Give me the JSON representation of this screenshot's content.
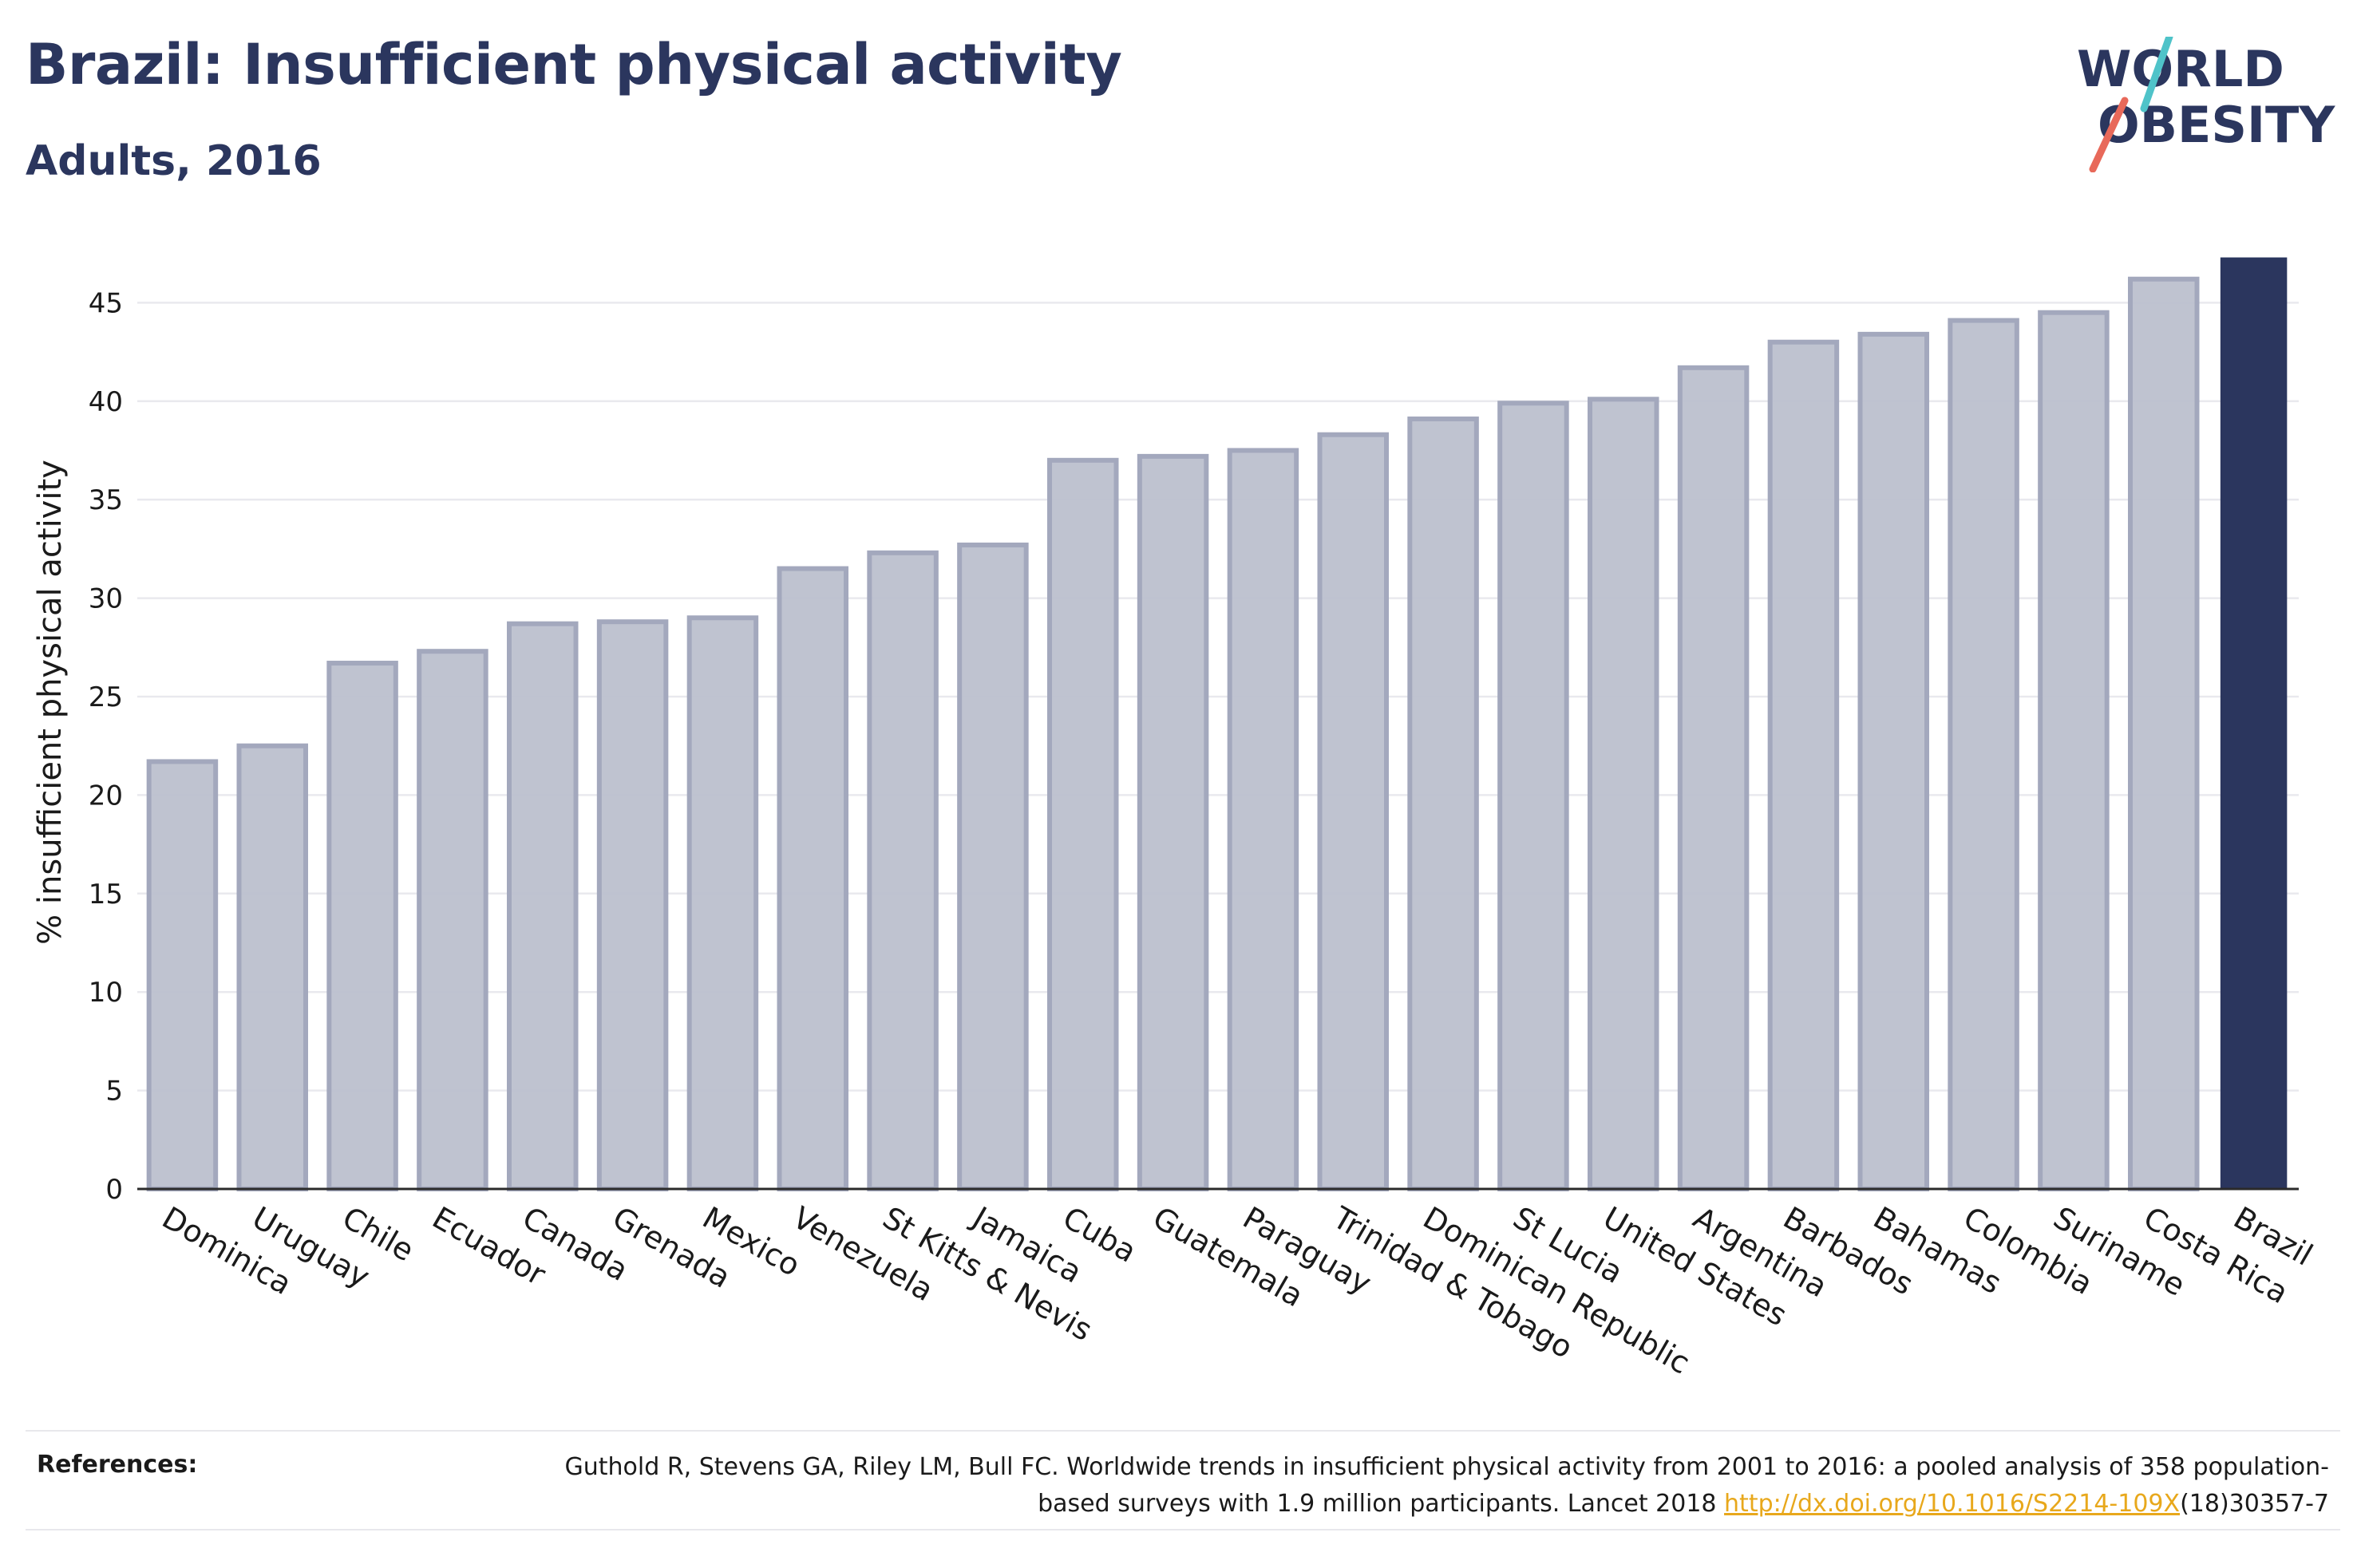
{
  "header": {
    "title": "Brazil: Insufficient physical activity",
    "subtitle": "Adults, 2016"
  },
  "logo": {
    "line1": "WORLD",
    "line2": "OBESITY",
    "accent_colors": [
      "#4fc3c9",
      "#e8695a"
    ]
  },
  "chart_data": {
    "type": "bar",
    "ylabel": "% insufficient physical activity",
    "xlabel": "",
    "ylim": [
      0,
      47
    ],
    "yticks": [
      0,
      5,
      10,
      15,
      20,
      25,
      30,
      35,
      40,
      45
    ],
    "grid": true,
    "highlight_category": "Brazil",
    "bar_color": "#bcc0ce",
    "bar_border_color": "#a3a8bd",
    "highlight_color": "#2b365e",
    "categories": [
      "Dominica",
      "Uruguay",
      "Chile",
      "Ecuador",
      "Canada",
      "Grenada",
      "Mexico",
      "Venezuela",
      "St Kitts & Nevis",
      "Jamaica",
      "Cuba",
      "Guatemala",
      "Paraguay",
      "Trinidad & Tobago",
      "Dominican Republic",
      "St Lucia",
      "United States",
      "Argentina",
      "Barbados",
      "Bahamas",
      "Colombia",
      "Suriname",
      "Costa Rica",
      "Brazil"
    ],
    "values": [
      21.7,
      22.5,
      26.7,
      27.3,
      28.7,
      28.8,
      29.0,
      31.5,
      32.3,
      32.7,
      37.0,
      37.2,
      37.5,
      38.3,
      39.1,
      39.9,
      40.1,
      41.7,
      43.0,
      43.4,
      44.1,
      44.5,
      46.2,
      47.3
    ]
  },
  "references": {
    "label": "References:",
    "text_before_link": "Guthold R, Stevens GA, Riley LM, Bull FC. Worldwide trends in insufficient physical activity from 2001 to 2016: a pooled analysis of 358 population-based surveys with 1.9 million participants. Lancet 2018 ",
    "link_text": "http://dx.doi.org/10.1016/S2214-109X",
    "text_after_link": "(18)30357-7"
  }
}
